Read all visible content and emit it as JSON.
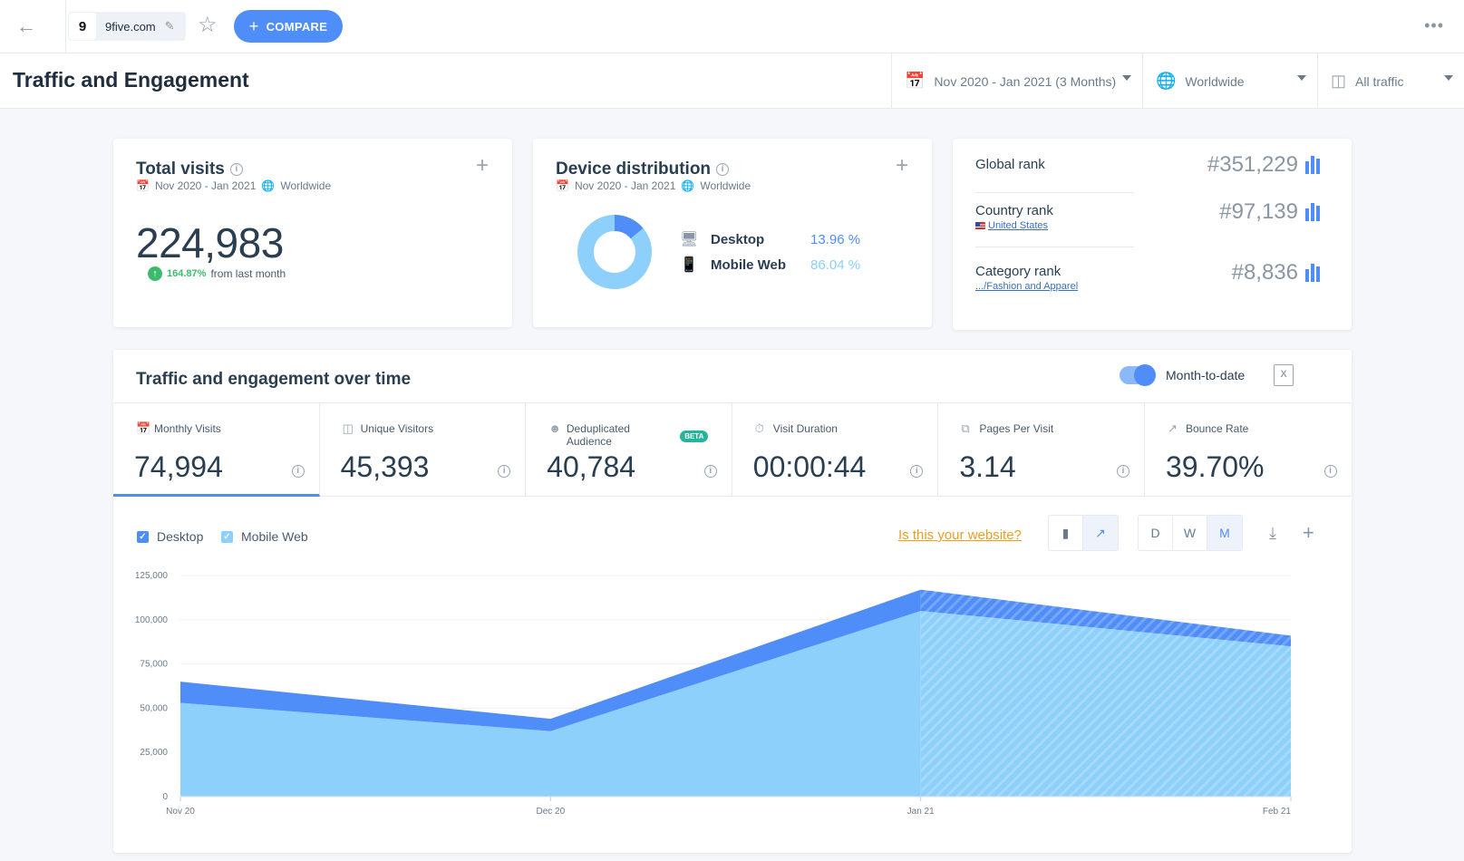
{
  "topbar": {
    "site_name": "9five.com",
    "site_logo_glyph": "9",
    "compare_label": "COMPARE",
    "back_icon": "arrow-left-icon",
    "star_icon": "star-icon",
    "more_icon": "ellipsis-icon"
  },
  "header": {
    "title": "Traffic and Engagement",
    "date_range": "Nov 2020 - Jan 2021 (3 Months)",
    "region": "Worldwide",
    "traffic": "All traffic"
  },
  "total_visits": {
    "title": "Total visits",
    "period": "Nov 2020 - Jan 2021",
    "region": "Worldwide",
    "value": "224,983",
    "change": "164.87%",
    "change_suffix": "from last month"
  },
  "device": {
    "title": "Device distribution",
    "period": "Nov 2020 - Jan 2021",
    "region": "Worldwide",
    "items": [
      {
        "label": "Desktop",
        "value": "13.96 %",
        "share": 13.96,
        "color": "#4f8df9"
      },
      {
        "label": "Mobile Web",
        "value": "86.04 %",
        "share": 86.04,
        "color": "#8dd0fb"
      }
    ]
  },
  "ranks": {
    "global": {
      "label": "Global rank",
      "value": "#351,229"
    },
    "country": {
      "label": "Country rank",
      "link": "United States",
      "value": "#97,139"
    },
    "category": {
      "label": "Category rank",
      "link": ".../Fashion and Apparel",
      "value": "#8,836"
    }
  },
  "over_time": {
    "title": "Traffic and engagement over time",
    "toggle_label": "Month-to-date",
    "toggle_on": true,
    "metrics": [
      {
        "label": "Monthly Visits",
        "value": "74,994",
        "icon": "calendar-icon",
        "active": true
      },
      {
        "label": "Unique Visitors",
        "value": "45,393",
        "icon": "person-icon"
      },
      {
        "label": "Deduplicated Audience",
        "value": "40,784",
        "icon": "people-icon",
        "badge": "BETA"
      },
      {
        "label": "Visit Duration",
        "value": "00:00:44",
        "icon": "stopwatch-icon"
      },
      {
        "label": "Pages Per Visit",
        "value": "3.14",
        "icon": "pages-icon"
      },
      {
        "label": "Bounce Rate",
        "value": "39.70%",
        "icon": "trend-icon"
      }
    ],
    "legend": {
      "desktop": "Desktop",
      "mobile": "Mobile Web"
    },
    "is_your_site": "Is this your website?",
    "granularity": [
      "D",
      "W",
      "M"
    ],
    "selected_granularity": "M"
  },
  "chart_data": {
    "type": "area",
    "stacked": true,
    "categories": [
      "Nov 20",
      "Dec 20",
      "Jan 21",
      "Feb 21"
    ],
    "series": [
      {
        "name": "Mobile Web",
        "values": [
          53000,
          37000,
          105000,
          85000
        ],
        "color": "#8dd0fb"
      },
      {
        "name": "Desktop",
        "values": [
          12000,
          7000,
          12000,
          6000
        ],
        "color": "#4f8df9"
      }
    ],
    "ylim": [
      0,
      125000
    ],
    "yticks": [
      "0",
      "25,000",
      "50,000",
      "75,000",
      "100,000",
      "125,000"
    ],
    "grid": true,
    "projected_from": "Jan 21"
  }
}
